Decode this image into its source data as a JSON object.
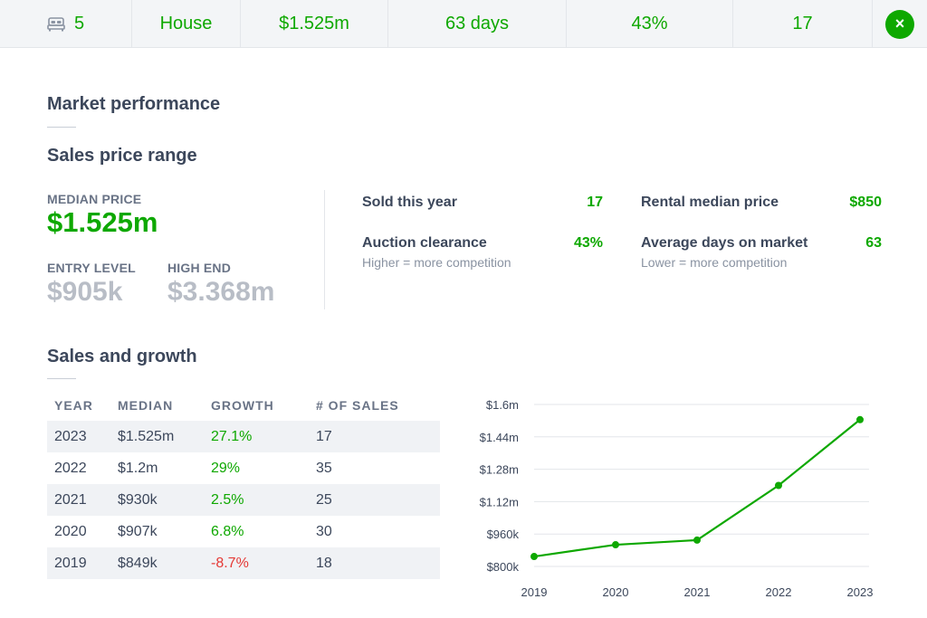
{
  "summary": {
    "bedrooms": "5",
    "property_type": "House",
    "median_price": "$1.525m",
    "days_on_market": "63 days",
    "clearance": "43%",
    "sold": "17",
    "close_symbol": "×"
  },
  "sections": {
    "market_performance": "Market performance",
    "sales_price_range": "Sales price range",
    "sales_and_growth": "Sales and growth"
  },
  "price_range": {
    "median_label": "MEDIAN PRICE",
    "median_value": "$1.525m",
    "entry_label": "ENTRY LEVEL",
    "entry_value": "$905k",
    "high_label": "HIGH END",
    "high_value": "$3.368m"
  },
  "stats": {
    "sold_label": "Sold this year",
    "sold_value": "17",
    "auction_label": "Auction clearance",
    "auction_value": "43%",
    "auction_sub": "Higher = more competition",
    "rental_label": "Rental median price",
    "rental_value": "$850",
    "days_label": "Average days on market",
    "days_value": "63",
    "days_sub": "Lower = more competition"
  },
  "table": {
    "headers": [
      "YEAR",
      "MEDIAN",
      "GROWTH",
      "# OF SALES"
    ],
    "rows": [
      {
        "year": "2023",
        "median": "$1.525m",
        "growth": "27.1%",
        "sales": "17"
      },
      {
        "year": "2022",
        "median": "$1.2m",
        "growth": "29%",
        "sales": "35"
      },
      {
        "year": "2021",
        "median": "$930k",
        "growth": "2.5%",
        "sales": "25"
      },
      {
        "year": "2020",
        "median": "$907k",
        "growth": "6.8%",
        "sales": "30"
      },
      {
        "year": "2019",
        "median": "$849k",
        "growth": "-8.7%",
        "sales": "18"
      }
    ]
  },
  "chart_data": {
    "type": "line",
    "x": [
      "2019",
      "2020",
      "2021",
      "2022",
      "2023"
    ],
    "values": [
      849000,
      907000,
      930000,
      1200000,
      1525000
    ],
    "y_ticks": [
      800000,
      960000,
      1120000,
      1280000,
      1440000,
      1600000
    ],
    "y_tick_labels": [
      "$800k",
      "$960k",
      "$1.12m",
      "$1.28m",
      "$1.44m",
      "$1.6m"
    ],
    "ylim": [
      800000,
      1600000
    ],
    "grid": true,
    "line_color": "#0ea800"
  },
  "colors": {
    "accent": "#0ea800",
    "negative": "#e53935"
  },
  "icons": {
    "bed": "bed-icon",
    "close": "close-icon"
  }
}
